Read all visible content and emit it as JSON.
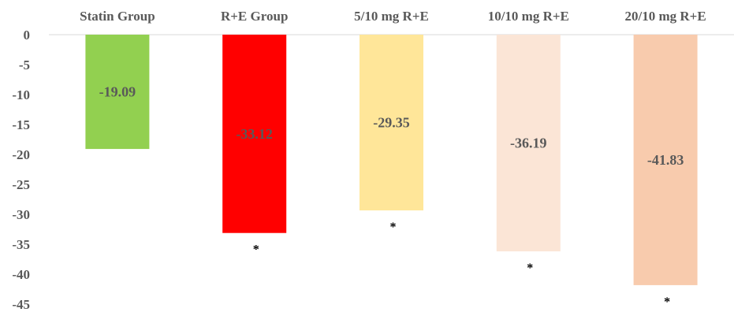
{
  "chart_data": {
    "type": "bar",
    "categories": [
      "Statin Group",
      "R+E Group",
      "5/10 mg R+E",
      "10/10 mg R+E",
      "20/10 mg R+E"
    ],
    "values": [
      -19.09,
      -33.12,
      -29.35,
      -36.19,
      -41.83
    ],
    "data_labels": [
      "-19.09",
      "-33.12",
      "-29.35",
      "-36.19",
      "-41.83"
    ],
    "significance_markers": [
      "",
      "*",
      "*",
      "*",
      "*"
    ],
    "colors": [
      "#92d050",
      "#ff0000",
      "#ffe699",
      "#fbe5d6",
      "#f8cbad"
    ],
    "yticks": [
      "0",
      "-5",
      "-10",
      "-15",
      "-20",
      "-25",
      "-30",
      "-35",
      "-40",
      "-45"
    ],
    "ylim": [
      -45,
      0
    ],
    "category_axis_position": "top",
    "grid": false
  }
}
